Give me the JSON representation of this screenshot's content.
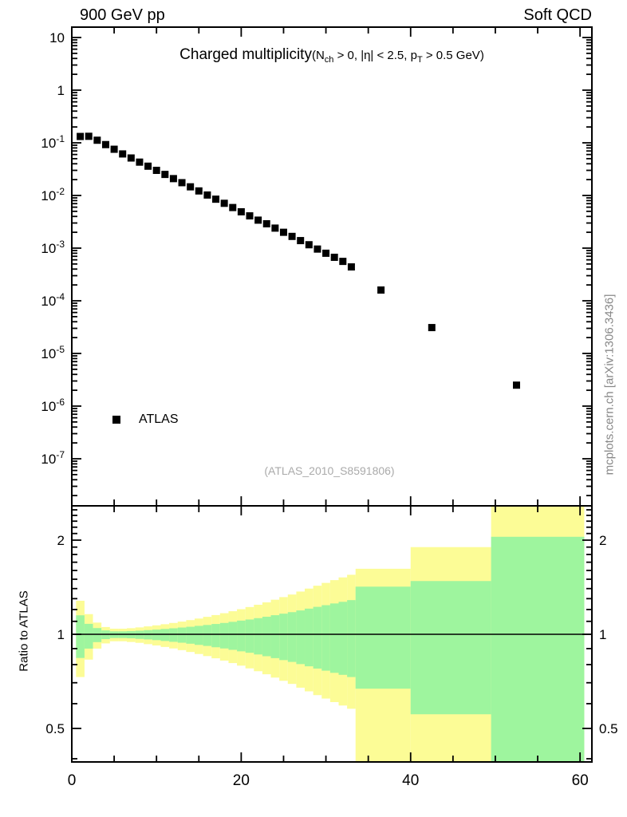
{
  "header": {
    "left": "900 GeV pp",
    "right": "Soft QCD"
  },
  "title": {
    "main": "Charged multiplicity",
    "paren_prefix": "(N",
    "sub1": "ch",
    "mid": " > 0, |η| < 2.5, p",
    "sub2": "T",
    "suffix": " > 0.5 GeV)"
  },
  "legend": {
    "label": "ATLAS",
    "marker": "black-filled-square"
  },
  "watermark": "(ATLAS_2010_S8591806)",
  "side_caption": "mcplots.cern.ch [arXiv:1306.3436]",
  "colors": {
    "band_outer": "#FCFC96",
    "band_inner": "#9EF59E",
    "marker": "#000000",
    "frame": "#000000",
    "watermark": "#aaaaaa",
    "side_caption": "#888888"
  },
  "chart_data": {
    "type": "scatter",
    "title": "Charged multiplicity (N_ch > 0, |eta| < 2.5, p_T > 0.5 GeV)",
    "xlim": [
      0,
      61.4
    ],
    "xticks_labeled": [
      0,
      20,
      40,
      60
    ],
    "xticks_minor_step": 5,
    "top_panel": {
      "yscale": "log",
      "ylim": [
        1.5e-08,
        16
      ],
      "ytick_exponents": [
        1,
        0,
        -1,
        -2,
        -3,
        -4,
        -5,
        -6,
        -7
      ],
      "series": [
        {
          "name": "ATLAS",
          "marker": "black-square",
          "x": [
            1,
            2,
            3,
            4,
            5,
            6,
            7,
            8,
            9,
            10,
            11,
            12,
            13,
            14,
            15,
            16,
            17,
            18,
            19,
            20,
            21,
            22,
            23,
            24,
            25,
            26,
            27,
            28,
            29,
            30,
            31,
            32,
            33,
            36.5,
            42.5,
            52.5
          ],
          "y": [
            0.132,
            0.133,
            0.112,
            0.0925,
            0.0755,
            0.0615,
            0.0515,
            0.043,
            0.036,
            0.03,
            0.0251,
            0.0209,
            0.0175,
            0.0146,
            0.0122,
            0.0102,
            0.0085,
            0.0071,
            0.0059,
            0.0049,
            0.0041,
            0.0034,
            0.0029,
            0.0024,
            0.002,
            0.00167,
            0.00139,
            0.00116,
            0.00096,
            0.0008,
            0.00067,
            0.00056,
            0.00044,
            0.00016,
            3.1e-05,
            2.5e-06
          ]
        }
      ]
    },
    "ratio_panel": {
      "ylabel": "Ratio to ATLAS",
      "yscale": "log",
      "ylim": [
        0.389,
        2.57
      ],
      "yticks_labeled": [
        0.5,
        1,
        2
      ],
      "yticks_minor": [
        0.4,
        0.6,
        0.7,
        0.8,
        0.9,
        1.1,
        1.2,
        1.3,
        1.4,
        1.5,
        1.6,
        1.7,
        1.8,
        1.9,
        2.1,
        2.2,
        2.3,
        2.4,
        2.5
      ],
      "reference_line": 1,
      "bands": [
        {
          "x0": 0.5,
          "x1": 1.5,
          "o": [
            0.73,
            1.28
          ],
          "i": [
            0.84,
            1.15
          ]
        },
        {
          "x0": 1.5,
          "x1": 2.5,
          "o": [
            0.83,
            1.16
          ],
          "i": [
            0.9,
            1.08
          ]
        },
        {
          "x0": 2.5,
          "x1": 3.5,
          "o": [
            0.9,
            1.09
          ],
          "i": [
            0.944,
            1.047
          ]
        },
        {
          "x0": 3.5,
          "x1": 4.5,
          "o": [
            0.935,
            1.055
          ],
          "i": [
            0.965,
            1.029
          ]
        },
        {
          "x0": 4.5,
          "x1": 5.5,
          "o": [
            0.95,
            1.042
          ],
          "i": [
            0.973,
            1.022
          ]
        },
        {
          "x0": 5.5,
          "x1": 6.5,
          "o": [
            0.95,
            1.042
          ],
          "i": [
            0.973,
            1.022
          ]
        },
        {
          "x0": 6.5,
          "x1": 7.5,
          "o": [
            0.945,
            1.046
          ],
          "i": [
            0.971,
            1.024
          ]
        },
        {
          "x0": 7.5,
          "x1": 8.5,
          "o": [
            0.939,
            1.052
          ],
          "i": [
            0.967,
            1.027
          ]
        },
        {
          "x0": 8.5,
          "x1": 9.5,
          "o": [
            0.93,
            1.06
          ],
          "i": [
            0.963,
            1.031
          ]
        },
        {
          "x0": 9.5,
          "x1": 10.5,
          "o": [
            0.921,
            1.068
          ],
          "i": [
            0.958,
            1.035
          ]
        },
        {
          "x0": 10.5,
          "x1": 11.5,
          "o": [
            0.911,
            1.077
          ],
          "i": [
            0.952,
            1.04
          ]
        },
        {
          "x0": 11.5,
          "x1": 12.5,
          "o": [
            0.901,
            1.087
          ],
          "i": [
            0.946,
            1.045
          ]
        },
        {
          "x0": 12.5,
          "x1": 13.5,
          "o": [
            0.89,
            1.098
          ],
          "i": [
            0.94,
            1.051
          ]
        },
        {
          "x0": 13.5,
          "x1": 14.5,
          "o": [
            0.878,
            1.11
          ],
          "i": [
            0.933,
            1.057
          ]
        },
        {
          "x0": 14.5,
          "x1": 15.5,
          "o": [
            0.865,
            1.123
          ],
          "i": [
            0.925,
            1.064
          ]
        },
        {
          "x0": 15.5,
          "x1": 16.5,
          "o": [
            0.852,
            1.137
          ],
          "i": [
            0.918,
            1.071
          ]
        },
        {
          "x0": 16.5,
          "x1": 17.5,
          "o": [
            0.838,
            1.152
          ],
          "i": [
            0.909,
            1.079
          ]
        },
        {
          "x0": 17.5,
          "x1": 18.5,
          "o": [
            0.824,
            1.168
          ],
          "i": [
            0.901,
            1.087
          ]
        },
        {
          "x0": 18.5,
          "x1": 19.5,
          "o": [
            0.809,
            1.185
          ],
          "i": [
            0.892,
            1.096
          ]
        },
        {
          "x0": 19.5,
          "x1": 20.5,
          "o": [
            0.794,
            1.203
          ],
          "i": [
            0.882,
            1.106
          ]
        },
        {
          "x0": 20.5,
          "x1": 21.5,
          "o": [
            0.778,
            1.222
          ],
          "i": [
            0.873,
            1.115
          ]
        },
        {
          "x0": 21.5,
          "x1": 22.5,
          "o": [
            0.762,
            1.243
          ],
          "i": [
            0.862,
            1.126
          ]
        },
        {
          "x0": 22.5,
          "x1": 23.5,
          "o": [
            0.745,
            1.265
          ],
          "i": [
            0.851,
            1.138
          ]
        },
        {
          "x0": 23.5,
          "x1": 24.5,
          "o": [
            0.727,
            1.29
          ],
          "i": [
            0.839,
            1.151
          ]
        },
        {
          "x0": 24.5,
          "x1": 25.5,
          "o": [
            0.71,
            1.315
          ],
          "i": [
            0.827,
            1.164
          ]
        },
        {
          "x0": 25.5,
          "x1": 26.5,
          "o": [
            0.694,
            1.34
          ],
          "i": [
            0.816,
            1.177
          ]
        },
        {
          "x0": 26.5,
          "x1": 27.5,
          "o": [
            0.675,
            1.37
          ],
          "i": [
            0.803,
            1.192
          ]
        },
        {
          "x0": 27.5,
          "x1": 28.5,
          "o": [
            0.657,
            1.4
          ],
          "i": [
            0.79,
            1.208
          ]
        },
        {
          "x0": 28.5,
          "x1": 29.5,
          "o": [
            0.639,
            1.43
          ],
          "i": [
            0.777,
            1.224
          ]
        },
        {
          "x0": 29.5,
          "x1": 30.5,
          "o": [
            0.623,
            1.46
          ],
          "i": [
            0.765,
            1.239
          ]
        },
        {
          "x0": 30.5,
          "x1": 31.5,
          "o": [
            0.607,
            1.49
          ],
          "i": [
            0.753,
            1.255
          ]
        },
        {
          "x0": 31.5,
          "x1": 32.5,
          "o": [
            0.592,
            1.52
          ],
          "i": [
            0.742,
            1.27
          ]
        },
        {
          "x0": 32.5,
          "x1": 33.5,
          "o": [
            0.578,
            1.55
          ],
          "i": [
            0.73,
            1.286
          ]
        },
        {
          "x0": 33.5,
          "x1": 40.0,
          "o": [
            0.3,
            1.62
          ],
          "i": [
            0.67,
            1.42
          ]
        },
        {
          "x0": 40.0,
          "x1": 49.5,
          "o": [
            0.3,
            1.9
          ],
          "i": [
            0.555,
            1.48
          ]
        },
        {
          "x0": 49.5,
          "x1": 60.5,
          "o": [
            0.3,
            2.7
          ],
          "i": [
            0.3,
            2.05
          ]
        }
      ]
    }
  }
}
